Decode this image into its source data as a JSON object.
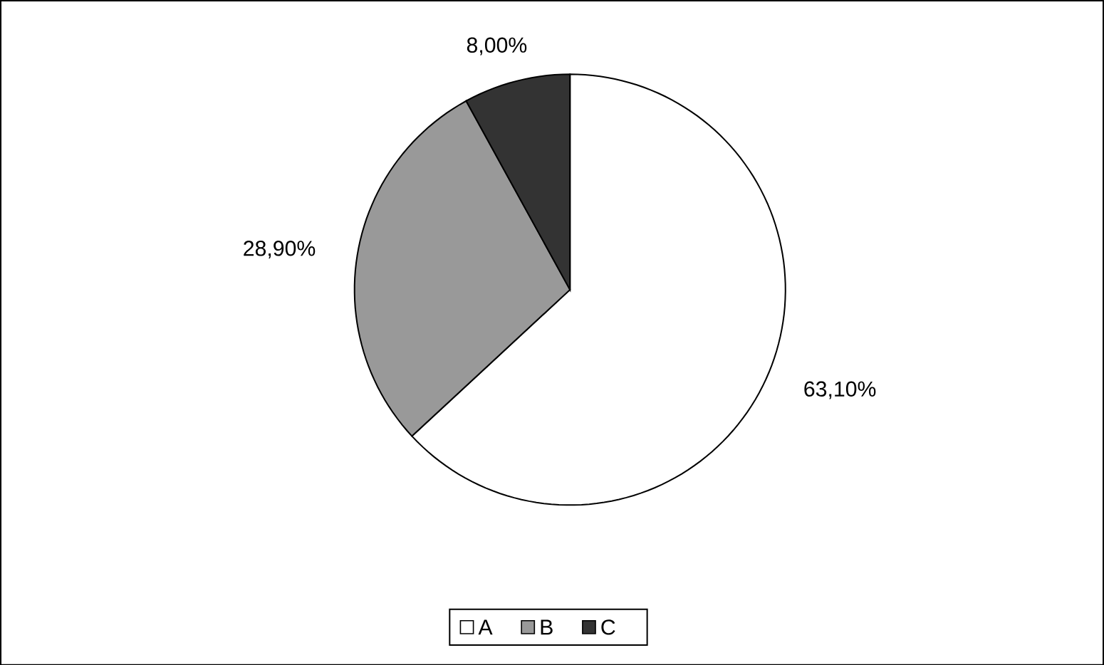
{
  "chart_data": {
    "type": "pie",
    "categories": [
      "A",
      "B",
      "C"
    ],
    "values": [
      63.1,
      28.9,
      8.0
    ],
    "colors": [
      "#ffffff",
      "#999999",
      "#333333"
    ],
    "value_labels": [
      "63,10%",
      "28,90%",
      "8,00%"
    ],
    "legend": "bottom"
  }
}
